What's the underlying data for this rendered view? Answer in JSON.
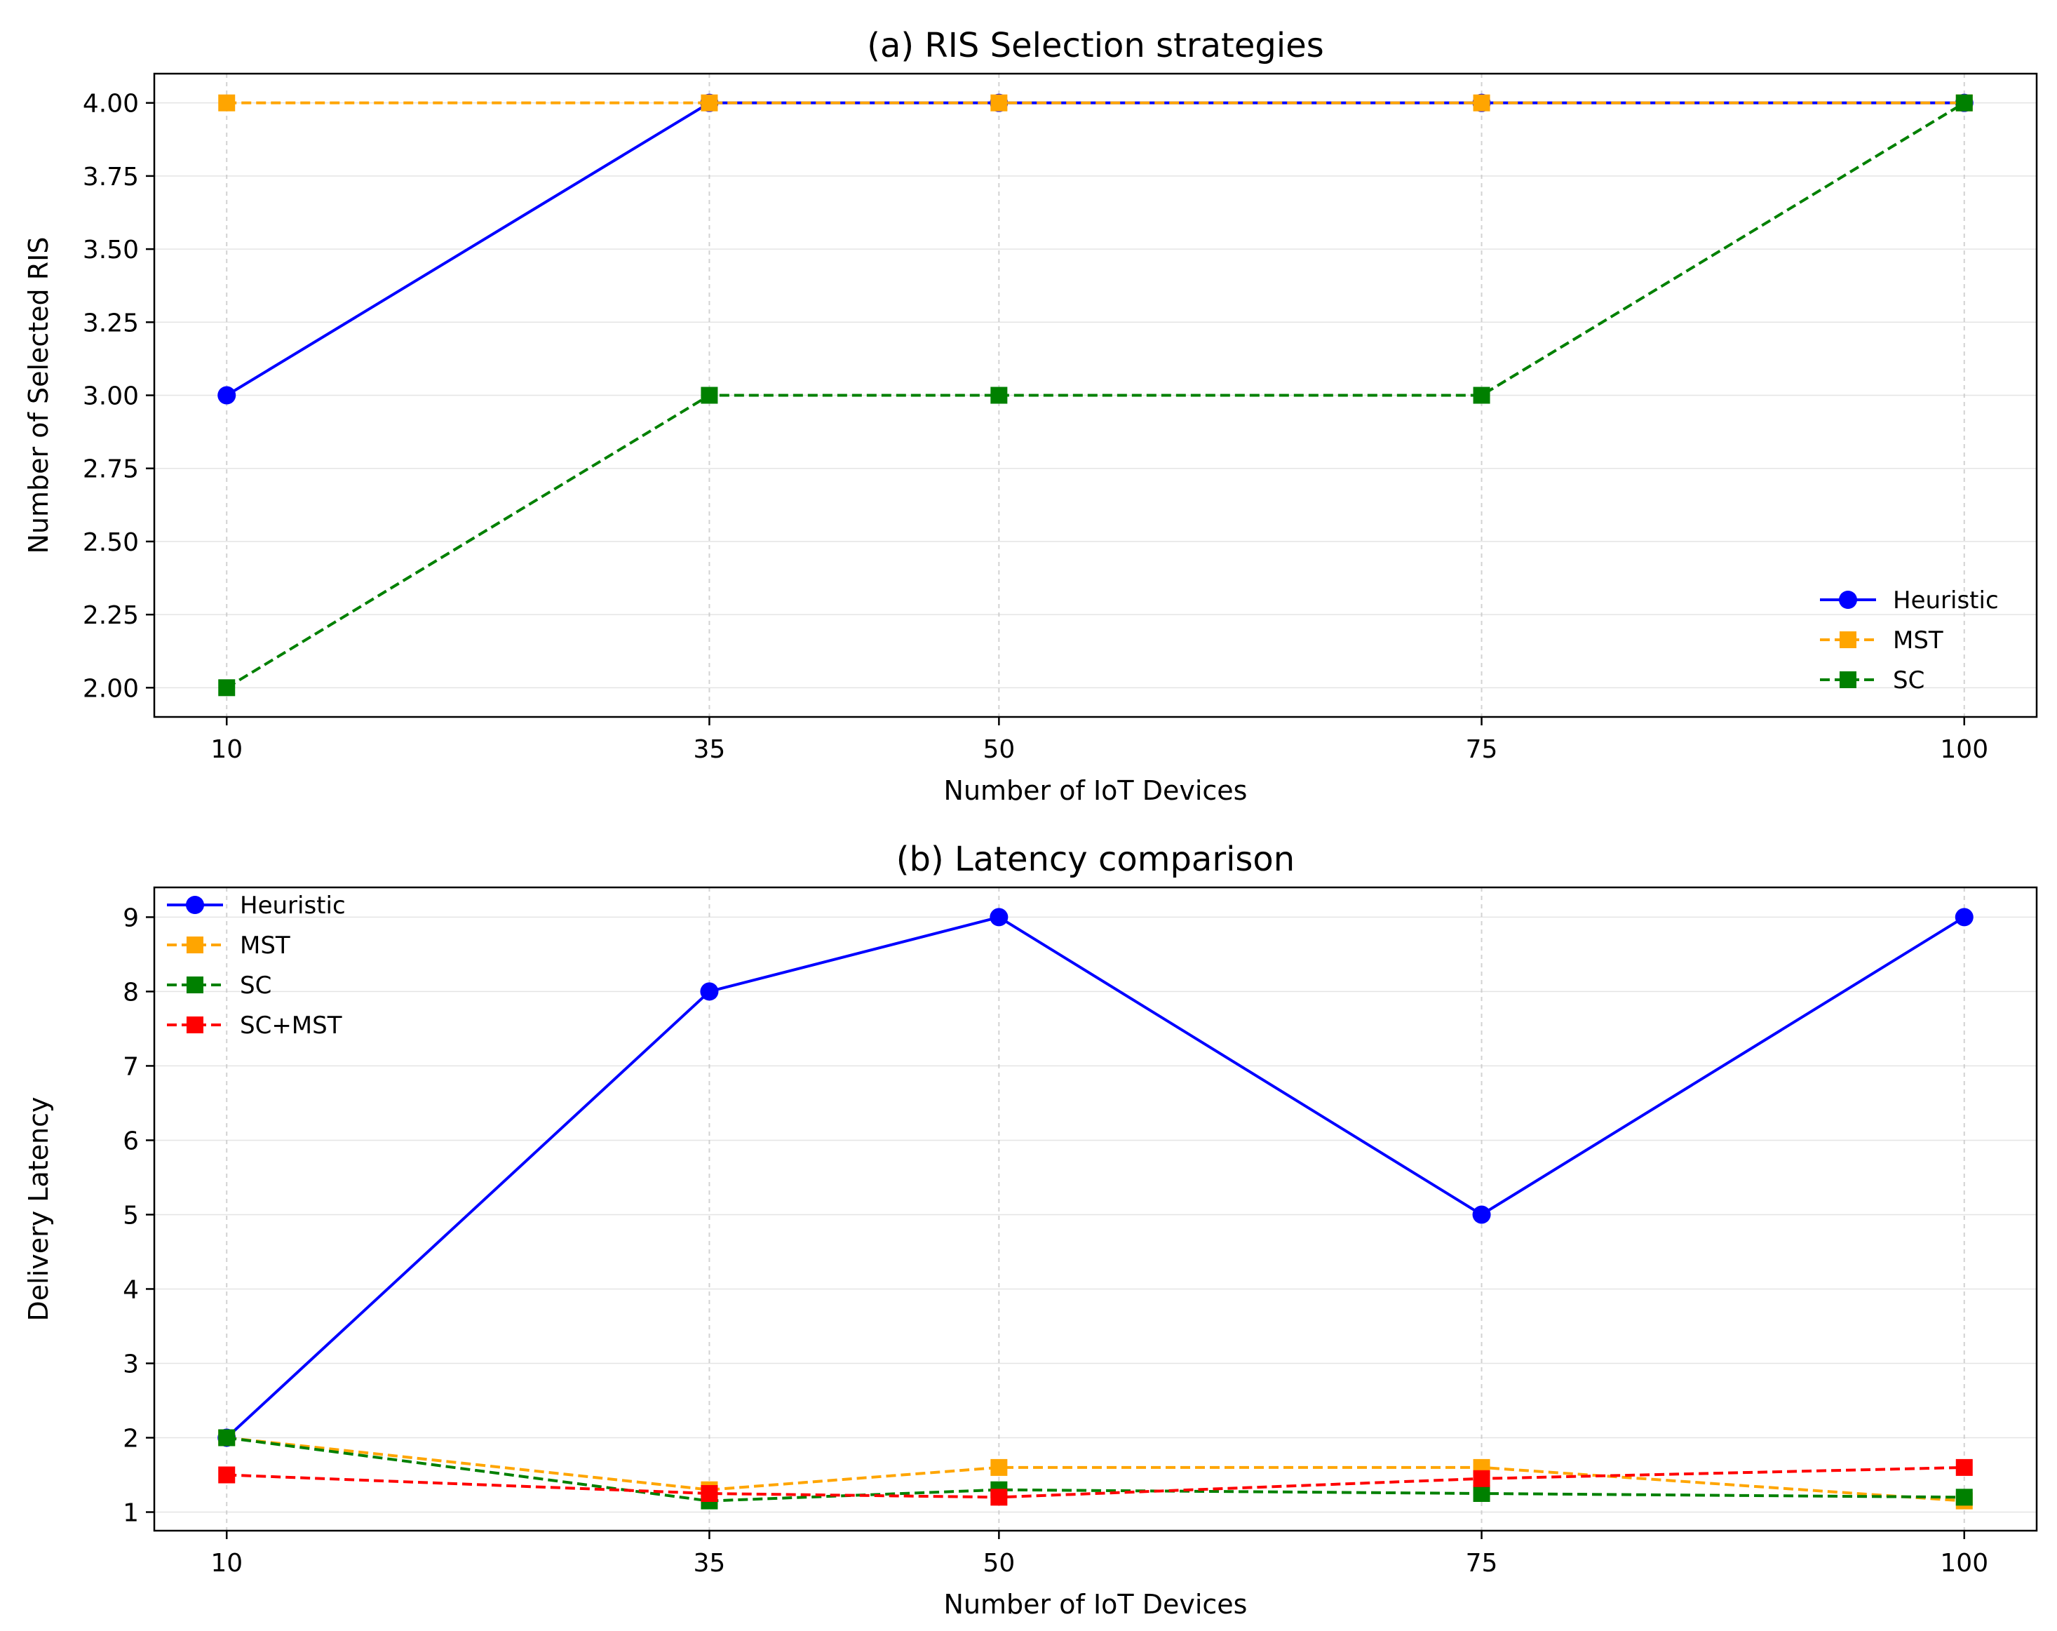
{
  "colors": {
    "Heuristic": "#0000ff",
    "MST": "#ffa500",
    "SC": "#008000",
    "SC+MST": "#ff0000",
    "grid": "#d9d9d9"
  },
  "chart_data": [
    {
      "type": "line",
      "title": "(a) RIS Selection strategies",
      "xlabel": "Number of IoT Devices",
      "ylabel": "Number of Selected RIS",
      "x": [
        10,
        35,
        50,
        75,
        100
      ],
      "x_tick_labels": [
        "10",
        "35",
        "50",
        "75",
        "100"
      ],
      "ylim": [
        1.9,
        4.1
      ],
      "y_ticks": [
        2.0,
        2.25,
        2.5,
        2.75,
        3.0,
        3.25,
        3.5,
        3.75,
        4.0
      ],
      "y_tick_labels": [
        "2.00",
        "2.25",
        "2.50",
        "2.75",
        "3.00",
        "3.25",
        "3.50",
        "3.75",
        "4.00"
      ],
      "grid": true,
      "legend_position": "lower-right",
      "series": [
        {
          "name": "Heuristic",
          "values": [
            3,
            4,
            4,
            4,
            4
          ],
          "marker": "circle",
          "line_style": "solid"
        },
        {
          "name": "MST",
          "values": [
            4,
            4,
            4,
            4,
            4
          ],
          "marker": "square",
          "line_style": "dashed"
        },
        {
          "name": "SC",
          "values": [
            2,
            3,
            3,
            3,
            4
          ],
          "marker": "square",
          "line_style": "dashed"
        }
      ]
    },
    {
      "type": "line",
      "title": "(b) Latency comparison",
      "xlabel": "Number of IoT Devices",
      "ylabel": "Delivery Latency",
      "x": [
        10,
        35,
        50,
        75,
        100
      ],
      "x_tick_labels": [
        "10",
        "35",
        "50",
        "75",
        "100"
      ],
      "ylim": [
        0.75,
        9.4
      ],
      "y_ticks": [
        1,
        2,
        3,
        4,
        5,
        6,
        7,
        8,
        9
      ],
      "y_tick_labels": [
        "1",
        "2",
        "3",
        "4",
        "5",
        "6",
        "7",
        "8",
        "9"
      ],
      "grid": true,
      "legend_position": "upper-left",
      "series": [
        {
          "name": "Heuristic",
          "values": [
            2,
            8,
            9,
            5,
            9
          ],
          "marker": "circle",
          "line_style": "solid"
        },
        {
          "name": "MST",
          "values": [
            2.0,
            1.3,
            1.6,
            1.6,
            1.15
          ],
          "marker": "square",
          "line_style": "dashed"
        },
        {
          "name": "SC",
          "values": [
            2.0,
            1.15,
            1.3,
            1.25,
            1.2
          ],
          "marker": "square",
          "line_style": "dashed"
        },
        {
          "name": "SC+MST",
          "values": [
            1.5,
            1.25,
            1.2,
            1.45,
            1.6
          ],
          "marker": "square",
          "line_style": "dashed"
        }
      ]
    }
  ]
}
